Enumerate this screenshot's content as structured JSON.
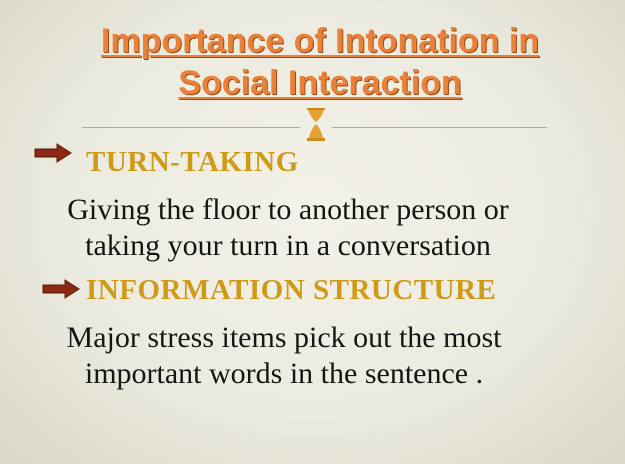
{
  "slide": {
    "title_line1": "Importance of Intonation in",
    "title_line2": "Social Interaction",
    "sections": [
      {
        "heading": "TURN-TAKING",
        "body_line1": "Giving the floor to another person or",
        "body_line2": "taking your turn in a conversation"
      },
      {
        "heading": "INFORMATION STRUCTURE",
        "body_line1": "Major stress items pick out the most",
        "body_line2": "important words in the sentence ."
      }
    ]
  },
  "colors": {
    "title": "#e8823a",
    "heading": "#cf9a18",
    "arrow": "#8a2a14",
    "ornament": "#e3a233"
  },
  "icons": [
    "arrow-bullet-icon",
    "ornament-icon"
  ]
}
